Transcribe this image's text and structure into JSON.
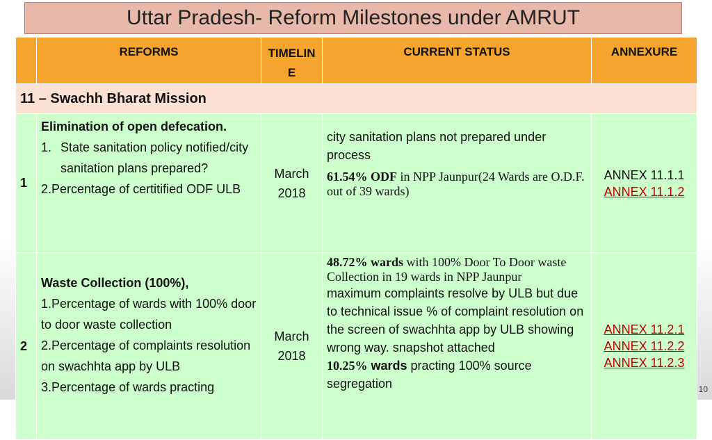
{
  "title": "Uttar Pradesh- Reform Milestones under AMRUT",
  "table": {
    "headers": [
      "REFORMS",
      "TIMELINE",
      "CURRENT STATUS",
      "ANNEXURE"
    ],
    "section": "11 – Swachh Bharat Mission",
    "rows": [
      {
        "number": "1",
        "reform_title": "Elimination of open defecation.",
        "items": [
          {
            "marker": "1.",
            "text": "State sanitation policy notified/city sanitation plans prepared?"
          },
          {
            "marker": "2.",
            "text": "Percentage of certitified ODF ULB"
          }
        ],
        "timeline": "March 2018",
        "status": {
          "note": "city sanitation plans not prepared under process",
          "bold": "61.54% ODF",
          "detail": " in NPP Jaunpur(24 Wards  are O.D.F. out of 39 wards)"
        },
        "annexures": [
          "ANNEX 11.1.1",
          "ANNEX 11.1.2"
        ]
      },
      {
        "number": "2",
        "reform_title": "Waste Collection (100%),",
        "items": [
          {
            "marker": "1.",
            "text": "Percentage of wards with 100% door to door waste collection"
          },
          {
            "marker": "2.",
            "text": "Percentage of complaints resolution on swachhta app by ULB"
          },
          {
            "marker": "3.",
            "text": "Percentage of wards practing"
          }
        ],
        "timeline": "March 2018",
        "status": {
          "bold": "48.72% wards",
          "detail": " with 100% Door To Door waste Collection in 19 wards in NPP Jaunpur",
          "note": "maximum complaints resolve by ULB but due to technical issue % of complaint resolution on the screen of swachhta app by ULB showing wrong way. snapshot attached",
          "bold2": "10.25%",
          "bold3": " wards",
          "detail2": " practing 100% source segregation"
        },
        "annexures": [
          "ANNEX 11.2.1",
          "ANNEX 11.2.2",
          "ANNEX 11.2.3"
        ]
      }
    ]
  },
  "page_number": "10"
}
